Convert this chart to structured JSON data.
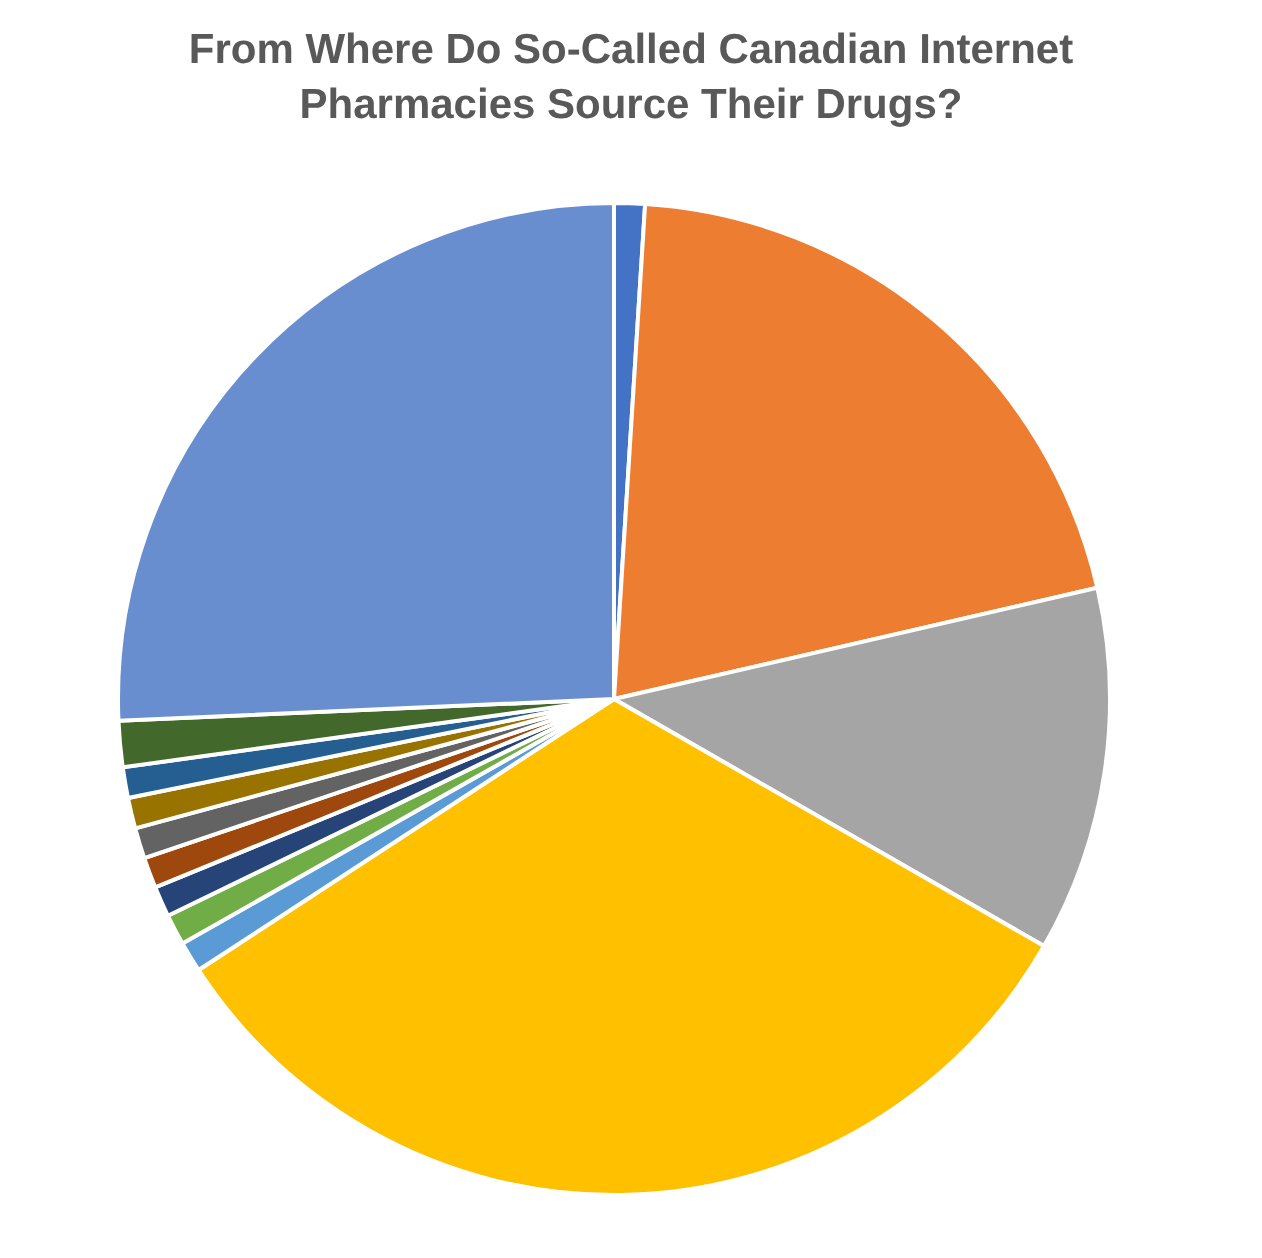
{
  "chart_data": {
    "type": "pie",
    "title": "From Where Do So-Called Canadian Internet Pharmacies Source Their Drugs?",
    "categories": [
      null,
      null,
      null,
      null,
      null,
      null,
      null,
      null,
      null,
      null,
      null,
      null,
      null
    ],
    "values": [
      1,
      20.4,
      11.9,
      32.5,
      1,
      1,
      1,
      1,
      1,
      1,
      1,
      1.5,
      25.7
    ],
    "colors": [
      "#4472c4",
      "#ed7d31",
      "#a5a5a5",
      "#ffc000",
      "#5b9bd5",
      "#70ad47",
      "#264478",
      "#9e480e",
      "#636363",
      "#997300",
      "#255e91",
      "#43682b",
      "#698ed0"
    ],
    "legend": false
  }
}
